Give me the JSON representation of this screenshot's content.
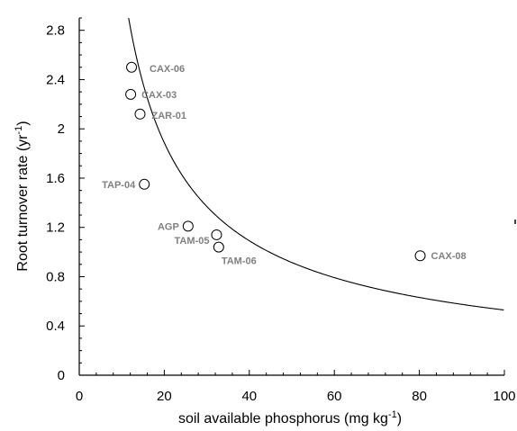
{
  "chart_data": {
    "type": "scatter",
    "xlabel_main": "soil available phosphorus (mg kg",
    "xlabel_sup": "-1",
    "xlabel_end": ")",
    "ylabel_main": "Root turnover rate (yr",
    "ylabel_sup": "-1",
    "ylabel_end": ")",
    "xlim": [
      0,
      100
    ],
    "ylim": [
      0,
      2.9
    ],
    "x_ticks": [
      "0",
      "20",
      "40",
      "60",
      "80",
      "100"
    ],
    "y_ticks": [
      "0",
      "0.4",
      "0.8",
      "1.2",
      "1.6",
      "2",
      "2.4",
      "2.8"
    ],
    "grid": false,
    "points": [
      {
        "label": "CAX-06",
        "x": 12.3,
        "y": 2.5
      },
      {
        "label": "CAX-03",
        "x": 12.1,
        "y": 2.28
      },
      {
        "label": "ZAR-01",
        "x": 14.3,
        "y": 2.12
      },
      {
        "label": "TAP-04",
        "x": 15.3,
        "y": 1.55
      },
      {
        "label": "AGP",
        "x": 25.6,
        "y": 1.21
      },
      {
        "label": "TAM-05",
        "x": 32.3,
        "y": 1.14
      },
      {
        "label": "TAM-06",
        "x": 32.8,
        "y": 1.04
      },
      {
        "label": "CAX-08",
        "x": 80.2,
        "y": 0.97
      }
    ],
    "fit_curve": {
      "a": 20.12,
      "b": -0.79
    }
  }
}
